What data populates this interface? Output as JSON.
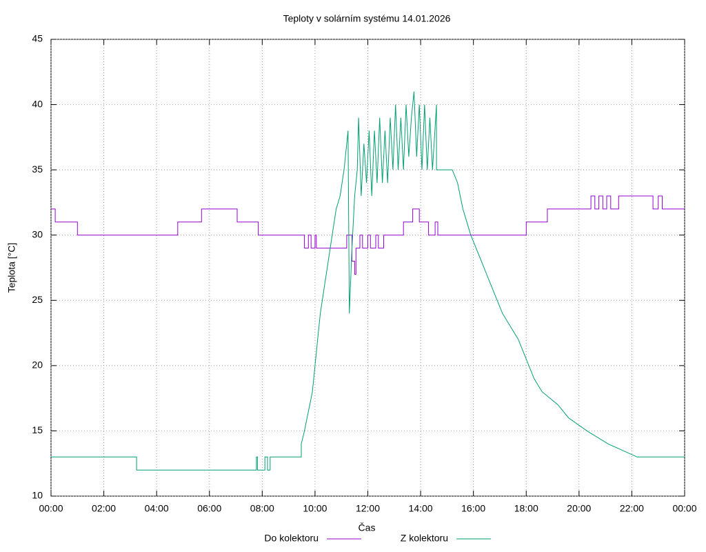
{
  "chart_data": {
    "type": "line",
    "title": "Teploty v solárním systému 14.01.2026",
    "x_label": "Čas",
    "y_label": "Teplota [°C]",
    "xlim": [
      0,
      24
    ],
    "xticks": [
      {
        "value": 0,
        "label": "00:00"
      },
      {
        "value": 2,
        "label": "02:00"
      },
      {
        "value": 4,
        "label": "04:00"
      },
      {
        "value": 6,
        "label": "06:00"
      },
      {
        "value": 8,
        "label": "08:00"
      },
      {
        "value": 10,
        "label": "10:00"
      },
      {
        "value": 12,
        "label": "12:00"
      },
      {
        "value": 14,
        "label": "14:00"
      },
      {
        "value": 16,
        "label": "16:00"
      },
      {
        "value": 18,
        "label": "18:00"
      },
      {
        "value": 20,
        "label": "20:00"
      },
      {
        "value": 22,
        "label": "22:00"
      },
      {
        "value": 24,
        "label": "00:00"
      }
    ],
    "ylim": [
      10,
      45
    ],
    "yticks": [
      10,
      15,
      20,
      25,
      30,
      35,
      40,
      45
    ],
    "grid": true,
    "legend": "bottom",
    "series": [
      {
        "name": "Do kolektoru",
        "color": "#9400d3",
        "x": [
          0,
          0.16,
          0.16,
          1,
          1,
          4.8,
          4.8,
          5.7,
          5.7,
          7.05,
          7.05,
          7.85,
          7.85,
          9.6,
          9.6,
          9.75,
          9.75,
          9.85,
          9.85,
          10.0,
          10.0,
          10.05,
          10.05,
          11.2,
          11.2,
          11.4,
          11.4,
          11.5,
          11.5,
          11.55,
          11.55,
          11.7,
          11.7,
          11.8,
          11.8,
          12.0,
          12.0,
          12.1,
          12.1,
          12.3,
          12.3,
          12.4,
          12.4,
          12.6,
          12.6,
          13.35,
          13.35,
          13.7,
          13.7,
          13.95,
          13.95,
          14.3,
          14.3,
          14.55,
          14.55,
          14.65,
          14.65,
          18,
          18,
          18.8,
          18.8,
          20.45,
          20.45,
          20.6,
          20.6,
          20.75,
          20.75,
          20.9,
          20.9,
          21.05,
          21.05,
          21.2,
          21.2,
          21.5,
          21.5,
          22.8,
          22.8,
          23.0,
          23.0,
          23.15,
          23.15,
          24
        ],
        "values": [
          32,
          32,
          31,
          31,
          30,
          30,
          31,
          31,
          32,
          32,
          31,
          31,
          30,
          30,
          29,
          29,
          30,
          30,
          29,
          29,
          30,
          30,
          29,
          29,
          30,
          30,
          28,
          28,
          27,
          27,
          29,
          29,
          30,
          30,
          29,
          29,
          30,
          30,
          29,
          29,
          30,
          30,
          29,
          29,
          30,
          30,
          31,
          31,
          32,
          32,
          31,
          31,
          30,
          30,
          31,
          31,
          30,
          30,
          31,
          31,
          32,
          32,
          33,
          33,
          32,
          32,
          33,
          33,
          32,
          32,
          33,
          33,
          32,
          32,
          33,
          33,
          32,
          32,
          33,
          33,
          32,
          32
        ]
      },
      {
        "name": "Z kolektoru",
        "color": "#009e73",
        "x": [
          0,
          3.24,
          3.24,
          7.78,
          7.78,
          7.82,
          7.82,
          8.1,
          8.1,
          8.2,
          8.2,
          8.3,
          8.3,
          9.48,
          9.48,
          9.6,
          9.7,
          9.8,
          9.9,
          10.0,
          10.1,
          10.2,
          10.35,
          10.5,
          10.65,
          10.8,
          10.95,
          11.1,
          11.2,
          11.25,
          11.3,
          11.4,
          11.5,
          11.6,
          11.65,
          11.75,
          11.85,
          11.95,
          12.05,
          12.15,
          12.25,
          12.35,
          12.45,
          12.55,
          12.65,
          12.75,
          12.85,
          12.95,
          13.05,
          13.15,
          13.25,
          13.35,
          13.45,
          13.55,
          13.65,
          13.75,
          13.85,
          13.95,
          14.05,
          14.15,
          14.25,
          14.35,
          14.45,
          14.6,
          14.6,
          15.2,
          15.4,
          15.5,
          15.6,
          15.75,
          15.9,
          16.1,
          16.3,
          16.5,
          16.7,
          16.9,
          17.1,
          17.4,
          17.7,
          17.9,
          18.1,
          18.3,
          18.6,
          19.2,
          19.6,
          20.3,
          21.1,
          22.2,
          24
        ],
        "values": [
          13,
          13,
          12,
          12,
          13,
          13,
          12,
          12,
          13,
          13,
          12,
          12,
          13,
          13,
          14,
          15,
          16,
          17,
          18,
          20,
          22,
          24,
          26,
          28,
          30,
          32,
          33,
          35,
          37,
          38,
          24,
          29,
          33,
          35,
          39,
          33,
          37,
          34,
          38,
          33,
          38,
          34,
          39,
          34,
          38,
          34,
          39,
          35,
          40,
          35,
          39,
          35,
          40,
          36,
          39,
          41,
          36,
          40,
          35,
          40,
          35,
          39,
          35,
          40,
          35,
          35,
          34,
          33,
          32,
          31,
          30,
          29,
          28,
          27,
          26,
          25,
          24,
          23,
          22,
          21,
          20,
          19,
          18,
          17,
          16,
          15,
          14,
          13,
          13
        ]
      }
    ]
  }
}
